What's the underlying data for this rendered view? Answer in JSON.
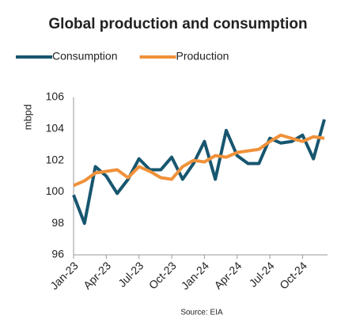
{
  "chart_data": {
    "type": "line",
    "title": "Global production and consumption",
    "y_label": "mbpd",
    "source": "Source: EIA",
    "categories": [
      "Jan-23",
      null,
      null,
      "Apr-23",
      null,
      null,
      "Jul-23",
      null,
      null,
      "Oct-23",
      null,
      null,
      "Jan-24",
      null,
      null,
      "Apr-24",
      null,
      null,
      "Jul-24",
      null,
      null,
      "Oct-24",
      null,
      null
    ],
    "series": [
      {
        "name": "Consumption",
        "color": "#17566f",
        "values": [
          99.8,
          98.0,
          101.6,
          101.0,
          99.9,
          100.8,
          102.1,
          101.4,
          101.4,
          102.2,
          100.8,
          101.8,
          103.2,
          100.8,
          103.9,
          102.3,
          101.8,
          101.8,
          103.4,
          103.1,
          103.2,
          103.6,
          102.1,
          104.6
        ]
      },
      {
        "name": "Production",
        "color": "#f0913a",
        "values": [
          100.4,
          100.7,
          101.2,
          101.3,
          101.4,
          100.9,
          101.6,
          101.3,
          100.9,
          100.8,
          101.6,
          102.0,
          101.9,
          102.3,
          102.2,
          102.5,
          102.6,
          102.7,
          103.2,
          103.6,
          103.4,
          103.2,
          103.5,
          103.4
        ]
      }
    ],
    "ylim": [
      96,
      106
    ],
    "yticks": [
      96,
      98,
      100,
      102,
      104,
      106
    ],
    "grid": false,
    "legend": "top-left"
  }
}
